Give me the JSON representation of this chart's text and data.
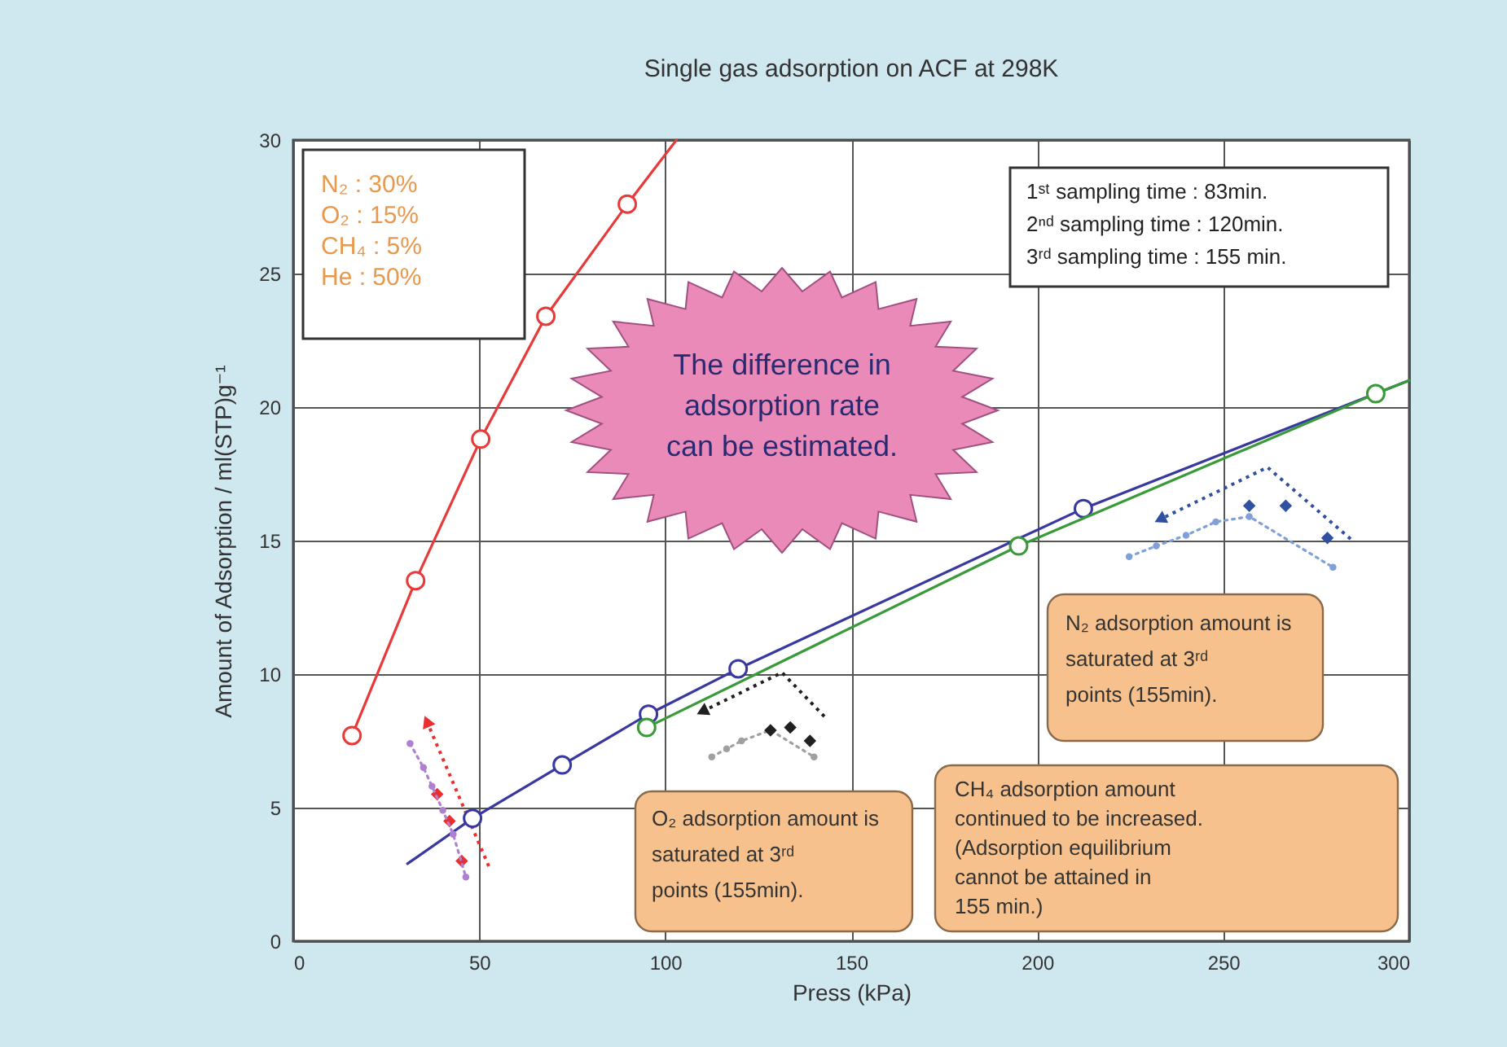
{
  "chart_data": {
    "type": "line",
    "title": "Single gas adsorption on ACF at 298K",
    "xlabel": "Press (kPa)",
    "ylabel": "Amount of Adsorption / ml(STP)g⁻¹",
    "xlim": [
      0,
      300
    ],
    "ylim": [
      0,
      30
    ],
    "xticks": [
      0,
      50,
      100,
      150,
      200,
      250,
      300
    ],
    "yticks": [
      0,
      5,
      10,
      15,
      20,
      25,
      30
    ],
    "grid": true,
    "annotations": [
      "N₂   : 30%",
      "O₂   : 15%",
      "CH₄  :   5%",
      "He   : 50%",
      "1ˢᵗ sampling time : 83min.",
      "2ⁿᵈ sampling time : 120min.",
      "3ʳᵈ sampling time : 155 min.",
      "The difference in\nadsorption rate\ncan be estimated.",
      "N₂ adsorption amount is\nsaturated at 3ʳᵈ\npoints (155min).",
      "O₂ adsorption amount is\nsaturated at 3ʳᵈ\npoints (155min).",
      "CH₄ adsorption amount\ncontinued to be increased.\n(Adsorption equilibrium\ncannot be attained in\n155 min.)"
    ],
    "series": [
      {
        "type": "line",
        "color": "#e83a3a",
        "marker": "none",
        "line_style": "solid",
        "x": [
          15.8,
          32.9,
          50.4,
          67.9,
          89.8,
          103
        ],
        "values": [
          7.7,
          13.5,
          18.8,
          23.4,
          27.6,
          30
        ]
      },
      {
        "type": "scatter",
        "color": "#e83a3a",
        "marker": "circle",
        "x": [
          15.8,
          32.9,
          50.4,
          67.9,
          89.8
        ],
        "values": [
          7.7,
          13.5,
          18.8,
          23.4,
          27.6
        ]
      },
      {
        "type": "line",
        "color": "#3838a0",
        "marker": "none",
        "line_style": "solid",
        "x": [
          30.7,
          48.2,
          72.3,
          95.5,
          119.6,
          212.4,
          300
        ],
        "values": [
          2.9,
          4.6,
          6.6,
          8.5,
          10.2,
          16.2,
          21.0
        ]
      },
      {
        "type": "scatter",
        "color": "#3838a0",
        "marker": "circle",
        "x": [
          48.2,
          72.3,
          95.5,
          119.6,
          212.4
        ],
        "values": [
          4.6,
          6.6,
          8.5,
          10.2,
          16.2
        ]
      },
      {
        "type": "line",
        "color": "#3a9a3a",
        "marker": "none",
        "line_style": "solid",
        "x": [
          95,
          195,
          291,
          300
        ],
        "values": [
          8.0,
          14.8,
          20.5,
          21.0
        ]
      },
      {
        "type": "scatter",
        "color": "#3a9a3a",
        "marker": "circle",
        "x": [
          95,
          195,
          291
        ],
        "values": [
          8.0,
          14.8,
          20.5
        ]
      },
      {
        "type": "scatter",
        "color": "#e83030",
        "marker": "diamond",
        "x": [
          38.7,
          42,
          45.3
        ],
        "values": [
          5.5,
          4.5,
          3.0
        ]
      },
      {
        "type": "line",
        "color": "#b080d0",
        "marker": "circle",
        "line_style": "dotted",
        "x": [
          31.4,
          35,
          37.3,
          40.2,
          43,
          46.4
        ],
        "values": [
          7.4,
          6.5,
          5.8,
          4.9,
          4.0,
          2.4
        ]
      },
      {
        "type": "line",
        "color": "#a0a0a0",
        "marker": "circle",
        "line_style": "dotted",
        "x": [
          112.5,
          116.5,
          120.5,
          128.3,
          140
        ],
        "values": [
          6.9,
          7.2,
          7.5,
          7.9,
          6.9
        ]
      },
      {
        "type": "scatter",
        "color": "#202020",
        "marker": "diamond",
        "x": [
          128.3,
          133.6,
          138.9
        ],
        "values": [
          7.9,
          8.0,
          7.5
        ]
      },
      {
        "type": "scatter",
        "color": "#3050a0",
        "marker": "diamond",
        "x": [
          257,
          266.8,
          278
        ],
        "values": [
          16.3,
          16.3,
          15.1
        ]
      },
      {
        "type": "line",
        "color": "#80a0d8",
        "marker": "circle",
        "line_style": "dotted",
        "x": [
          224.7,
          232,
          240,
          248,
          257,
          279.5
        ],
        "values": [
          14.4,
          14.8,
          15.2,
          15.7,
          15.9,
          14.0
        ]
      }
    ]
  }
}
